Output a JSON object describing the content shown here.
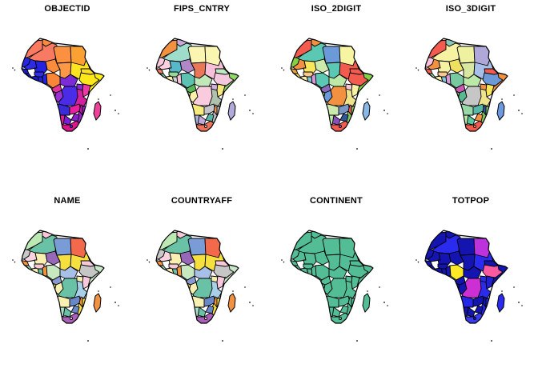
{
  "figure": {
    "background": "#FFFFFF",
    "border_color": "#000000",
    "title_color": "#000000",
    "island_dot_color": "#000000",
    "rows": 2,
    "cols": 4
  },
  "chart_data": {
    "type": "choropleth-grid",
    "title": "",
    "facets": [
      "OBJECTID",
      "FIPS_CNTRY",
      "ISO_2DIGIT",
      "ISO_3DIGIT",
      "NAME",
      "COUNTRYAFF",
      "CONTINENT",
      "TOTPOP"
    ],
    "region": "Africa",
    "legend": "none",
    "notes": "Eight small-multiple maps of Africa, each polygon colored by a different attribute; CONTINENT is a single uniform color; TOTPOP uses mostly dark blues with a few highlight countries."
  },
  "panels": [
    {
      "title": "OBJECTID",
      "colors": {
        "morocco": "#F97A5E",
        "tunisia": "#FA8A3C",
        "algeria": "#F87A62",
        "libya": "#FB9040",
        "egypt": "#FBA032",
        "western_sahara": "#2828E2",
        "mauritania": "#2B2BE8",
        "mali": "#2222E0",
        "niger": "#FB8C3C",
        "chad": "#FC9846",
        "sudan": "#FFE51F",
        "senegal": "#1C1CCF",
        "guinea": "#1616C2",
        "sierra_leone": "#1212B8",
        "liberia": "#1010B0",
        "cote_divoire": "#1A1AC9",
        "ghana": "#2222D4",
        "burkina_faso": "#2E2EEB",
        "benin": "#2424DA",
        "nigeria": "#FA8638",
        "eritrea": "#FFDD24",
        "ethiopia": "#FFE81A",
        "somalia": "#FFEF12",
        "cameroon": "#E3309B",
        "car": "#7B2BD8",
        "gabon": "#C93BC0",
        "congo": "#9B2FD6",
        "drc": "#4A2BE8",
        "uganda": "#8A2BD8",
        "kenya": "#ED38A5",
        "tanzania": "#D41F9E",
        "angola": "#3A2BD8",
        "zambia": "#E8209E",
        "malawi": "#C218A8",
        "mozambique": "#A020D0",
        "zimbabwe": "#8A1FD0",
        "botswana": "#7A1FD9",
        "namibia": "#E01F96",
        "south_africa": "#E0148C",
        "madagascar": "#F0409C",
        "lesotho": "#2B2BE8"
      }
    },
    {
      "title": "FIPS_CNTRY",
      "colors": {
        "morocco": "#F2913F",
        "tunisia": "#C8A8D8",
        "algeria": "#9EDCCB",
        "libya": "#FAF6B2",
        "egypt": "#FAF6B2",
        "western_sahara": "#F8C8DC",
        "mauritania": "#F8D2DE",
        "mali": "#56B8C8",
        "niger": "#B088C8",
        "chad": "#E87858",
        "sudan": "#F8C0D8",
        "senegal": "#E87858",
        "guinea": "#78C8A8",
        "sierra_leone": "#C8C8C8",
        "liberia": "#A8C8E8",
        "cote_divoire": "#FAF0A8",
        "ghana": "#D0D0D0",
        "burkina_faso": "#98D898",
        "benin": "#F8C0D8",
        "nigeria": "#5EC2B2",
        "eritrea": "#C0E8C0",
        "ethiopia": "#F4C8DC",
        "somalia": "#90D868",
        "cameroon": "#58B858",
        "car": "#C0E8B8",
        "gabon": "#A0D868",
        "congo": "#FAF0A8",
        "drc": "#F8CCDE",
        "uganda": "#D0B0E0",
        "kenya": "#F6E87A",
        "tanzania": "#AEC2AE",
        "angola": "#F6EC7E",
        "zambia": "#C4C4CC",
        "malawi": "#E89858",
        "mozambique": "#BCBCC4",
        "zimbabwe": "#58B8A8",
        "botswana": "#C2A8DA",
        "namibia": "#AAB2DA",
        "south_africa": "#F07258",
        "madagascar": "#B2AADA",
        "lesotho": "#C8C8C8"
      }
    },
    {
      "title": "ISO_2DIGIT",
      "colors": {
        "morocco": "#F25B4E",
        "tunisia": "#F2913F",
        "algeria": "#5AC8B2",
        "libya": "#6C9AD8",
        "egypt": "#F8F5A2",
        "western_sahara": "#84D244",
        "mauritania": "#F2913F",
        "mali": "#F6E85A",
        "niger": "#CCEAAC",
        "chad": "#5AC8B2",
        "sudan": "#F25B4E",
        "senegal": "#E8A03C",
        "guinea": "#F6E85A",
        "sierra_leone": "#C8C8C8",
        "liberia": "#A0C8E8",
        "cote_divoire": "#F8F0A2",
        "ghana": "#80C8D8",
        "burkina_faso": "#F8C890",
        "benin": "#D898D8",
        "nigeria": "#5AC8B2",
        "eritrea": "#F25B4E",
        "ethiopia": "#F25B4E",
        "somalia": "#84D244",
        "cameroon": "#8868B8",
        "car": "#BCE8A8",
        "gabon": "#84C860",
        "congo": "#6C9AD8",
        "drc": "#F2913F",
        "uganda": "#F8C8D8",
        "kenya": "#F8F0A2",
        "tanzania": "#EFE48C",
        "angola": "#CCEAAC",
        "zambia": "#7898C8",
        "malawi": "#F25B4E",
        "mozambique": "#84C860",
        "zimbabwe": "#305898",
        "botswana": "#8850B8",
        "namibia": "#BCE8A8",
        "south_africa": "#F25B4E",
        "madagascar": "#88B8E8",
        "lesotho": "#8850B8"
      }
    },
    {
      "title": "ISO_3DIGIT",
      "colors": {
        "morocco": "#F25B4E",
        "tunisia": "#88C8B8",
        "algeria": "#F6F2A2",
        "libya": "#EEF2A0",
        "egypt": "#B0A8D8",
        "western_sahara": "#F8C0DC",
        "mauritania": "#F2913F",
        "mali": "#F6F2A2",
        "niger": "#F0E060",
        "chad": "#D8E8A0",
        "sudan": "#A8C0E8",
        "senegal": "#F25B4E",
        "guinea": "#98D8A8",
        "sierra_leone": "#C8C8C8",
        "liberia": "#A0C8E8",
        "cote_divoire": "#F8F0A2",
        "ghana": "#80C8D8",
        "burkina_faso": "#F8C890",
        "benin": "#D898D8",
        "nigeria": "#78C8A0",
        "eritrea": "#F25B4E",
        "ethiopia": "#6C9AD8",
        "somalia": "#F2913F",
        "cameroon": "#C858B0",
        "car": "#BCE8A8",
        "gabon": "#84C860",
        "congo": "#58B890",
        "drc": "#C6C6C6",
        "uganda": "#F2913F",
        "kenya": "#F6E85A",
        "tanzania": "#EFE48C",
        "angola": "#98D8A8",
        "zambia": "#58B8A8",
        "malawi": "#305898",
        "mozambique": "#84C860",
        "zimbabwe": "#F2913F",
        "botswana": "#58C8A0",
        "namibia": "#BCE8A8",
        "south_africa": "#F25B4E",
        "madagascar": "#6C9AE0",
        "lesotho": "#F2913F"
      }
    },
    {
      "title": "NAME",
      "colors": {
        "morocco": "#BCE8B4",
        "tunisia": "#F8C8D8",
        "algeria": "#69C2A5",
        "libya": "#7A9CD6",
        "egypt": "#F2694C",
        "western_sahara": "#C8C8C8",
        "mauritania": "#F8D2DE",
        "mali": "#F8F0B0",
        "niger": "#9868B8",
        "chad": "#F6E040",
        "sudan": "#F6E040",
        "senegal": "#F2913F",
        "guinea": "#98D8A8",
        "sierra_leone": "#F6E040",
        "liberia": "#A0C8E8",
        "cote_divoire": "#F8F0B0",
        "ghana": "#69C2A5",
        "burkina_faso": "#F8C8D8",
        "benin": "#F2913F",
        "nigeria": "#C8E8C0",
        "eritrea": "#F8C8D8",
        "ethiopia": "#C6C6C6",
        "somalia": "#C8E8C8",
        "cameroon": "#8898D0",
        "car": "#A8C0E8",
        "gabon": "#F6E040",
        "congo": "#F8F0B0",
        "drc": "#69C2A5",
        "uganda": "#F8F0B0",
        "kenya": "#F8C8DC",
        "tanzania": "#A8D0E8",
        "angola": "#F8F0B0",
        "zambia": "#6888C8",
        "malawi": "#F2913F",
        "mozambique": "#F6E040",
        "zimbabwe": "#6888C8",
        "botswana": "#69C2A5",
        "namibia": "#A8DCC8",
        "south_africa": "#A860B8",
        "madagascar": "#F2913F",
        "lesotho": "#F8C8D8"
      }
    },
    {
      "title": "COUNTRYAFF",
      "colors": {
        "morocco": "#BCE8B4",
        "tunisia": "#F8C8D8",
        "algeria": "#69C2A5",
        "libya": "#7A9CD6",
        "egypt": "#F2694C",
        "western_sahara": "#C8C8C8",
        "mauritania": "#F8D2DE",
        "mali": "#F8F0B0",
        "niger": "#9868B8",
        "chad": "#F6E040",
        "sudan": "#F6E040",
        "senegal": "#F2913F",
        "guinea": "#98D8A8",
        "sierra_leone": "#F6E040",
        "liberia": "#A0C8E8",
        "cote_divoire": "#F8F0B0",
        "ghana": "#69C2A5",
        "burkina_faso": "#F8C8D8",
        "benin": "#F2913F",
        "nigeria": "#C8E8C0",
        "eritrea": "#F8C8D8",
        "ethiopia": "#C6C6C6",
        "somalia": "#C8E8C8",
        "cameroon": "#8898D0",
        "car": "#A8C0E8",
        "gabon": "#F6E040",
        "congo": "#F8F0B0",
        "drc": "#69C2A5",
        "uganda": "#F8F0B0",
        "kenya": "#F8C8DC",
        "tanzania": "#A8D0E8",
        "angola": "#F8F0B0",
        "zambia": "#6888C8",
        "malawi": "#F2913F",
        "mozambique": "#F6E040",
        "zimbabwe": "#6888C8",
        "botswana": "#69C2A5",
        "namibia": "#A8DCC8",
        "south_africa": "#A860B8",
        "madagascar": "#F2913F",
        "lesotho": "#F8C8D8"
      }
    },
    {
      "title": "CONTINENT",
      "colors": {
        "all": "#53BD96"
      }
    },
    {
      "title": "TOTPOP",
      "colors": {
        "all": "#1414B0",
        "algeria": "#2B2BF0",
        "sudan": "#2B2BF0",
        "tanzania": "#2B2BF0",
        "angola": "#2626E8",
        "mozambique": "#2626E8",
        "south_africa": "#3A3AEE",
        "madagascar": "#2B2BF0",
        "uganda": "#2B2BF0",
        "kenya": "#2020D0",
        "nigeria": "#FFE926",
        "drc": "#CC2FD4",
        "ethiopia": "#FB5AA2",
        "egypt": "#BB33DD"
      }
    }
  ]
}
